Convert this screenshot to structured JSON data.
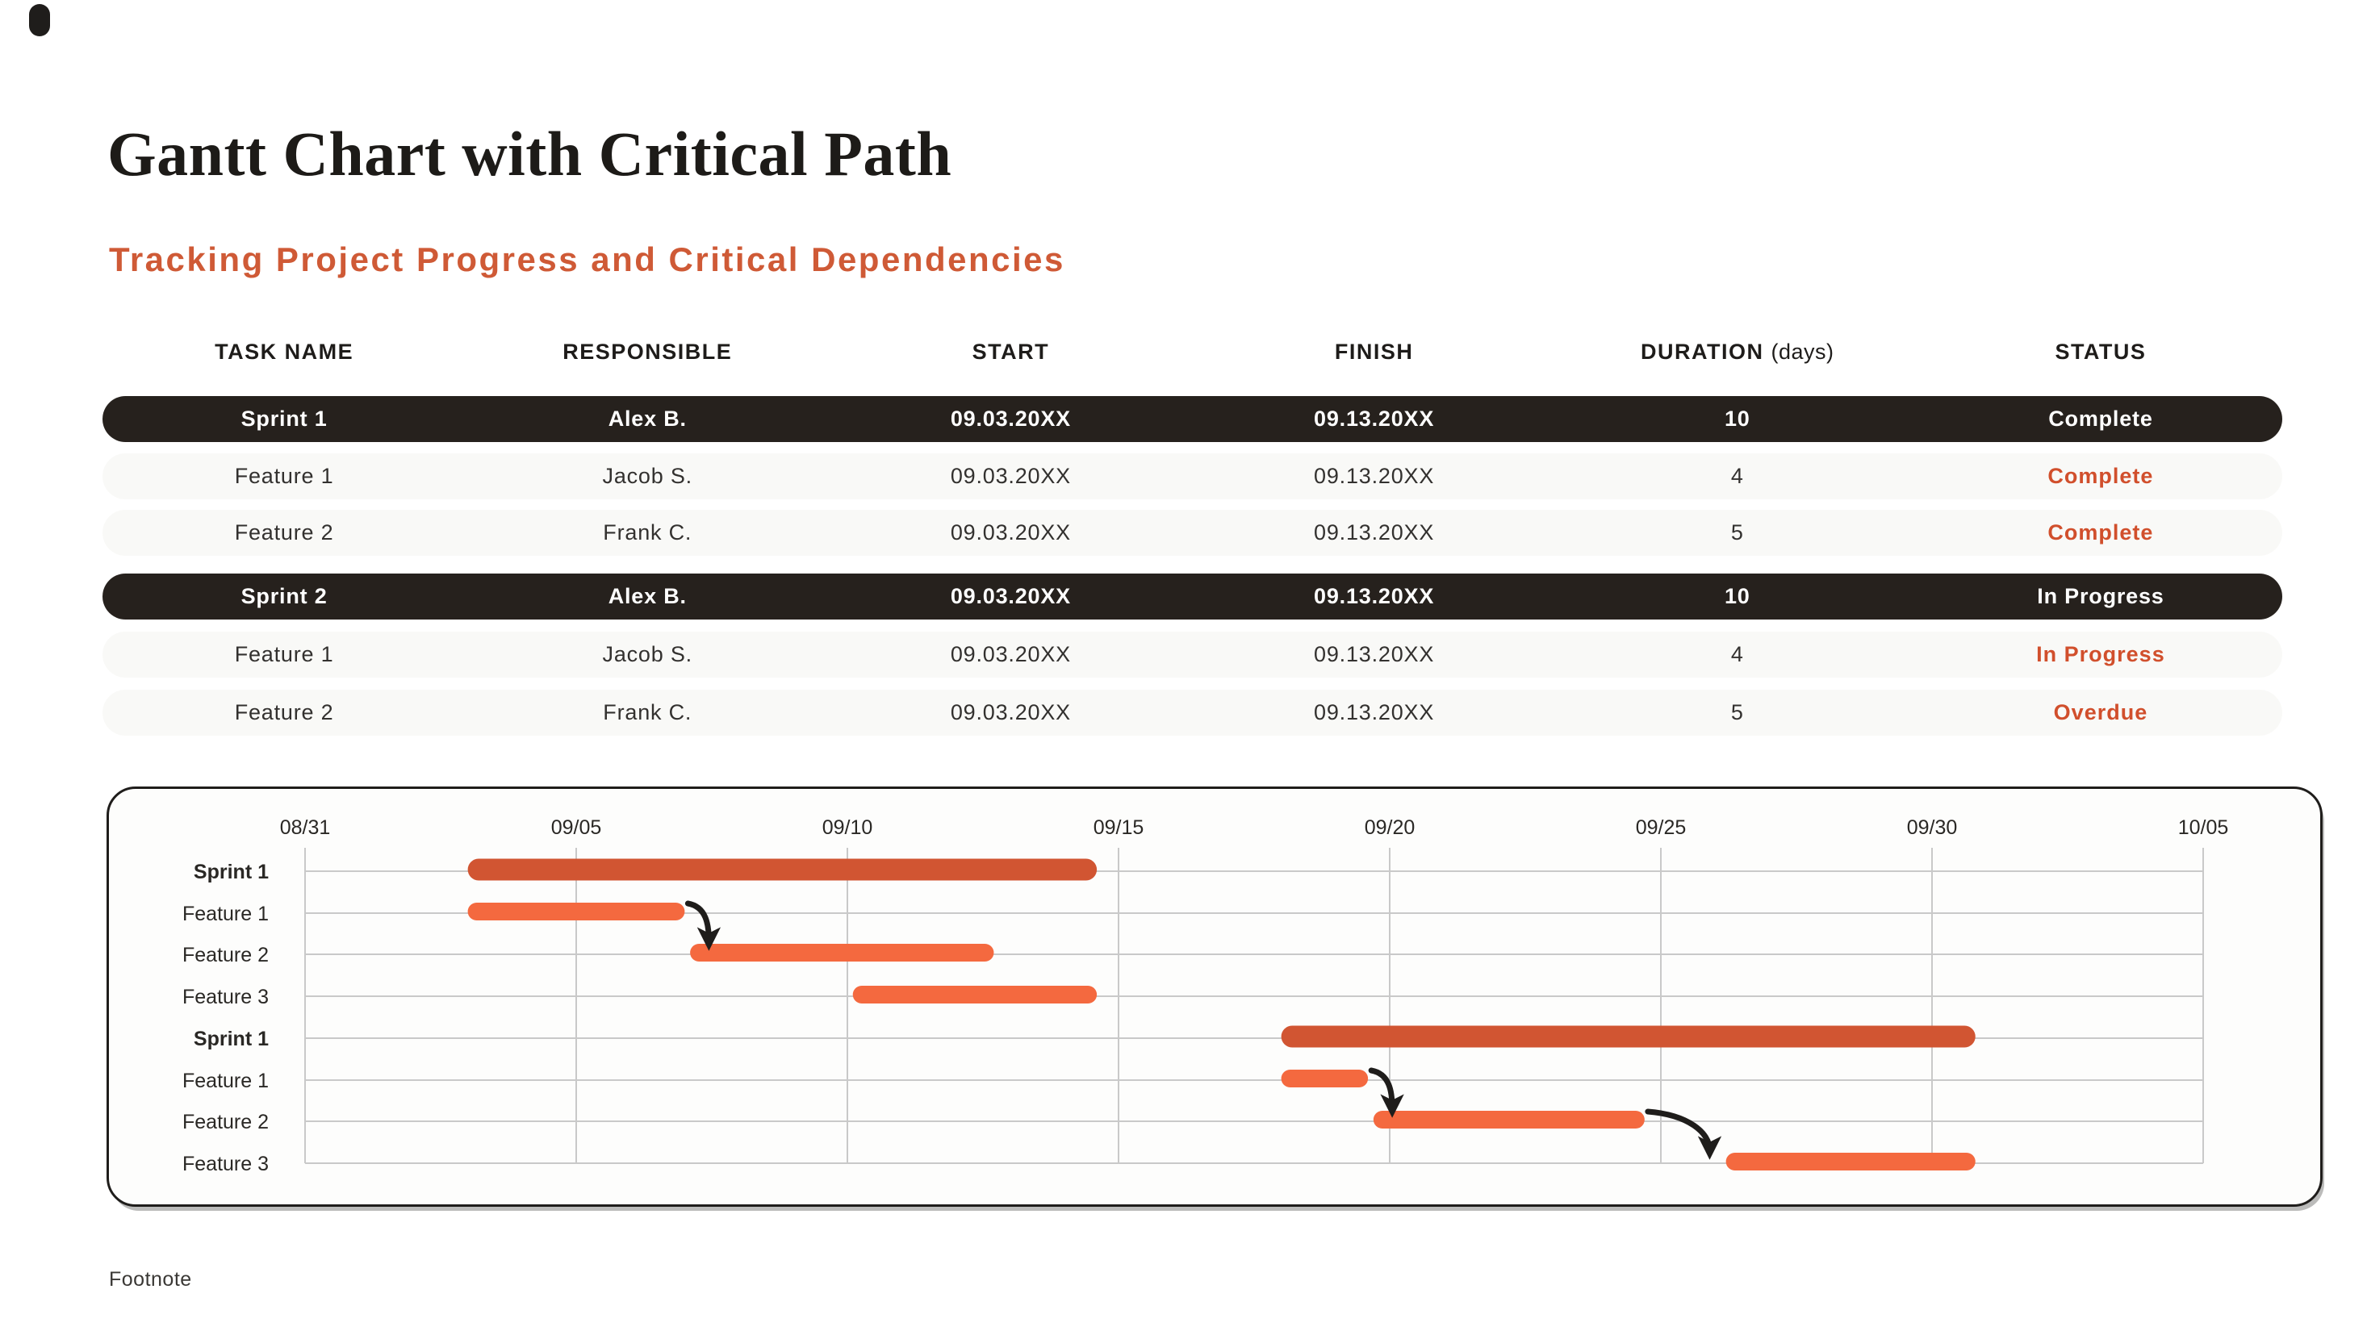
{
  "slide": {
    "title": "Gantt Chart with Critical Path",
    "subtitle": "Tracking Project Progress and Critical Dependencies",
    "footnote": "Footnote"
  },
  "colors": {
    "accent_orange": "#CF5A36",
    "status_orange": "#D14F2C",
    "bar_light": "#F4693F",
    "bar_dark": "#D15532",
    "dark_row_bg": "#26211D",
    "grid_line": "#C9C9C9",
    "chart_border": "#1F1D1B",
    "text_dark": "#2A2825"
  },
  "table": {
    "columns": [
      "TASK NAME",
      "RESPONSIBLE",
      "START",
      "FINISH",
      "DURATION",
      "STATUS"
    ],
    "duration_suffix": "(days)",
    "rows": [
      {
        "type": "sprint",
        "task": "Sprint 1",
        "responsible": "Alex B.",
        "start": "09.03.20XX",
        "finish": "09.13.20XX",
        "duration": "10",
        "status": "Complete"
      },
      {
        "type": "feature",
        "task": "Feature 1",
        "responsible": "Jacob S.",
        "start": "09.03.20XX",
        "finish": "09.13.20XX",
        "duration": "4",
        "status": "Complete"
      },
      {
        "type": "feature",
        "task": "Feature 2",
        "responsible": "Frank C.",
        "start": "09.03.20XX",
        "finish": "09.13.20XX",
        "duration": "5",
        "status": "Complete"
      },
      {
        "type": "sprint",
        "task": "Sprint 2",
        "responsible": "Alex B.",
        "start": "09.03.20XX",
        "finish": "09.13.20XX",
        "duration": "10",
        "status": "In Progress"
      },
      {
        "type": "feature",
        "task": "Feature 1",
        "responsible": "Jacob S.",
        "start": "09.03.20XX",
        "finish": "09.13.20XX",
        "duration": "4",
        "status": "In Progress"
      },
      {
        "type": "feature",
        "task": "Feature 2",
        "responsible": "Frank C.",
        "start": "09.03.20XX",
        "finish": "09.13.20XX",
        "duration": "5",
        "status": "Overdue"
      }
    ]
  },
  "chart_data": {
    "type": "gantt",
    "x_ticks": [
      "08/31",
      "09/05",
      "09/10",
      "09/15",
      "09/20",
      "09/25",
      "09/30",
      "10/05"
    ],
    "x_tick_days": [
      0,
      5,
      10,
      15,
      20,
      25,
      30,
      35
    ],
    "x_axis_note": "days measured as offset from 08/31",
    "grid": true,
    "rows": [
      {
        "label": "Sprint 1",
        "bold": true,
        "bar": {
          "start_day": 3.0,
          "end_day": 14.6,
          "color": "dark"
        }
      },
      {
        "label": "Feature 1",
        "bold": false,
        "bar": {
          "start_day": 3.0,
          "end_day": 7.0,
          "color": "light"
        }
      },
      {
        "label": "Feature 2",
        "bold": false,
        "bar": {
          "start_day": 7.1,
          "end_day": 12.7,
          "color": "light"
        }
      },
      {
        "label": "Feature 3",
        "bold": false,
        "bar": {
          "start_day": 10.1,
          "end_day": 14.6,
          "color": "light"
        }
      },
      {
        "label": "Sprint 1",
        "bold": true,
        "bar": {
          "start_day": 18.0,
          "end_day": 30.8,
          "color": "dark"
        }
      },
      {
        "label": "Feature 1",
        "bold": false,
        "bar": {
          "start_day": 18.0,
          "end_day": 19.6,
          "color": "light"
        }
      },
      {
        "label": "Feature 2",
        "bold": false,
        "bar": {
          "start_day": 19.7,
          "end_day": 24.7,
          "color": "light"
        }
      },
      {
        "label": "Feature 3",
        "bold": false,
        "bar": {
          "start_day": 26.2,
          "end_day": 30.8,
          "color": "light"
        }
      }
    ],
    "dependencies": [
      {
        "from_row": 1,
        "to_row": 2
      },
      {
        "from_row": 5,
        "to_row": 6
      },
      {
        "from_row": 6,
        "to_row": 7
      }
    ]
  }
}
